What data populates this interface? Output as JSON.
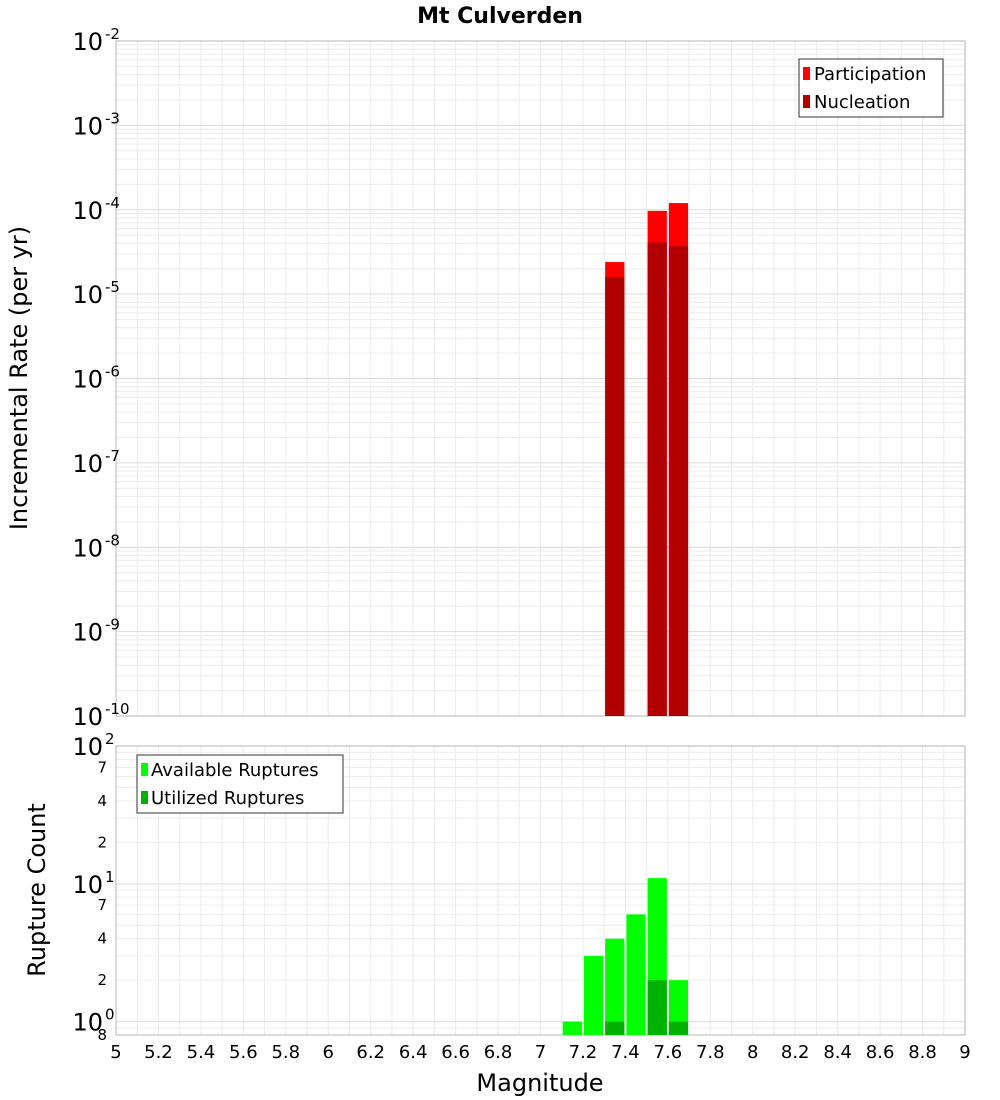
{
  "chart_data": [
    {
      "type": "bar",
      "title": "Mt Culverden",
      "xlabel": "",
      "ylabel": "Incremental Rate (per yr)",
      "xlim": [
        5,
        9
      ],
      "ylim": [
        1e-10,
        0.01
      ],
      "yscale": "log",
      "grid": true,
      "legend_position": "top-right",
      "bin_width": 0.1,
      "yticks": [
        {
          "value": 0.01,
          "base": "10",
          "exp": "-2"
        },
        {
          "value": 0.001,
          "base": "10",
          "exp": "-3"
        },
        {
          "value": 0.0001,
          "base": "10",
          "exp": "-4"
        },
        {
          "value": 1e-05,
          "base": "10",
          "exp": "-5"
        },
        {
          "value": 1e-06,
          "base": "10",
          "exp": "-6"
        },
        {
          "value": 1e-07,
          "base": "10",
          "exp": "-7"
        },
        {
          "value": 1e-08,
          "base": "10",
          "exp": "-8"
        },
        {
          "value": 1e-09,
          "base": "10",
          "exp": "-9"
        },
        {
          "value": 1e-10,
          "base": "10",
          "exp": "-10"
        }
      ],
      "series": [
        {
          "name": "Participation",
          "color": "#ff0000",
          "x": [
            7.35,
            7.55,
            7.65
          ],
          "values": [
            2.4e-05,
            9.7e-05,
            0.00012
          ]
        },
        {
          "name": "Nucleation",
          "color": "#b20000",
          "x": [
            7.35,
            7.55,
            7.65
          ],
          "values": [
            1.6e-05,
            4.1e-05,
            3.7e-05
          ]
        }
      ]
    },
    {
      "type": "bar",
      "title": "",
      "xlabel": "Magnitude",
      "ylabel": "Rupture Count",
      "xlim": [
        5,
        9
      ],
      "ylim": [
        0.8,
        100
      ],
      "yscale": "log",
      "grid": true,
      "legend_position": "top-left",
      "bin_width": 0.1,
      "xticks": [
        "5",
        "5.2",
        "5.4",
        "5.6",
        "5.8",
        "6",
        "6.2",
        "6.4",
        "6.6",
        "6.8",
        "7",
        "7.2",
        "7.4",
        "7.6",
        "7.8",
        "8",
        "8.2",
        "8.4",
        "8.6",
        "8.8",
        "9"
      ],
      "ymajor_ticks": [
        {
          "value": 100,
          "base": "10",
          "exp": "2"
        },
        {
          "value": 10,
          "base": "10",
          "exp": "1"
        },
        {
          "value": 1,
          "base": "10",
          "exp": "0"
        }
      ],
      "yminor_ticks": [
        {
          "value": 70,
          "label": "7"
        },
        {
          "value": 40,
          "label": "4"
        },
        {
          "value": 20,
          "label": "2"
        },
        {
          "value": 7,
          "label": "7"
        },
        {
          "value": 4,
          "label": "4"
        },
        {
          "value": 2,
          "label": "2"
        },
        {
          "value": 0.8,
          "label": "8"
        }
      ],
      "series": [
        {
          "name": "Available Ruptures",
          "color": "#00ff00",
          "x": [
            7.15,
            7.25,
            7.35,
            7.45,
            7.55,
            7.65
          ],
          "values": [
            1,
            3,
            4,
            6,
            11,
            2
          ]
        },
        {
          "name": "Utilized Ruptures",
          "color": "#00b200",
          "x": [
            7.35,
            7.55,
            7.65
          ],
          "values": [
            1,
            2,
            1
          ]
        }
      ]
    }
  ]
}
